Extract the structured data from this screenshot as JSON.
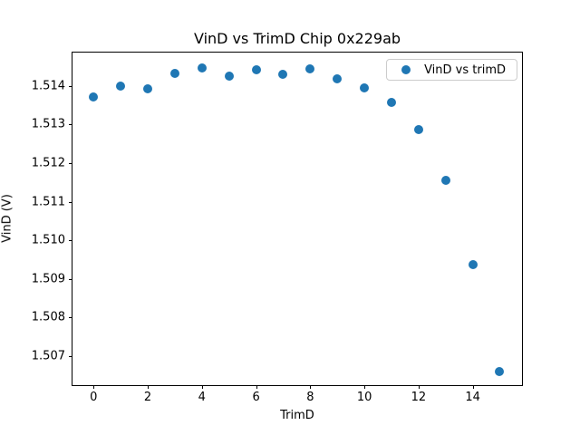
{
  "figure": {
    "background": "#ffffff"
  },
  "chart_data": {
    "type": "scatter",
    "title": "VinD vs TrimD Chip 0x229ab",
    "xlabel": "TrimD",
    "ylabel": "VinD (V)",
    "series": [
      {
        "name": "VinD vs trimD",
        "x": [
          0,
          1,
          2,
          3,
          4,
          5,
          6,
          7,
          8,
          9,
          10,
          11,
          12,
          13,
          14,
          15
        ],
        "y": [
          1.51372,
          1.51399,
          1.51392,
          1.51433,
          1.51446,
          1.51426,
          1.51441,
          1.51429,
          1.51443,
          1.51419,
          1.51395,
          1.51357,
          1.51287,
          1.51156,
          1.50937,
          1.5066
        ]
      }
    ],
    "xlim": [
      -0.78,
      15.82
    ],
    "ylim": [
      1.50625,
      1.51486
    ],
    "x_ticks": [
      0,
      2,
      4,
      6,
      8,
      10,
      12,
      14
    ],
    "y_ticks": [
      1.507,
      1.508,
      1.509,
      1.51,
      1.511,
      1.512,
      1.513,
      1.514
    ],
    "y_tick_decimals": 3,
    "grid": false,
    "legend": {
      "label": "VinD vs trimD",
      "position": "upper right"
    },
    "marker_color": "#1f77b4",
    "spine_color": "#000000"
  }
}
